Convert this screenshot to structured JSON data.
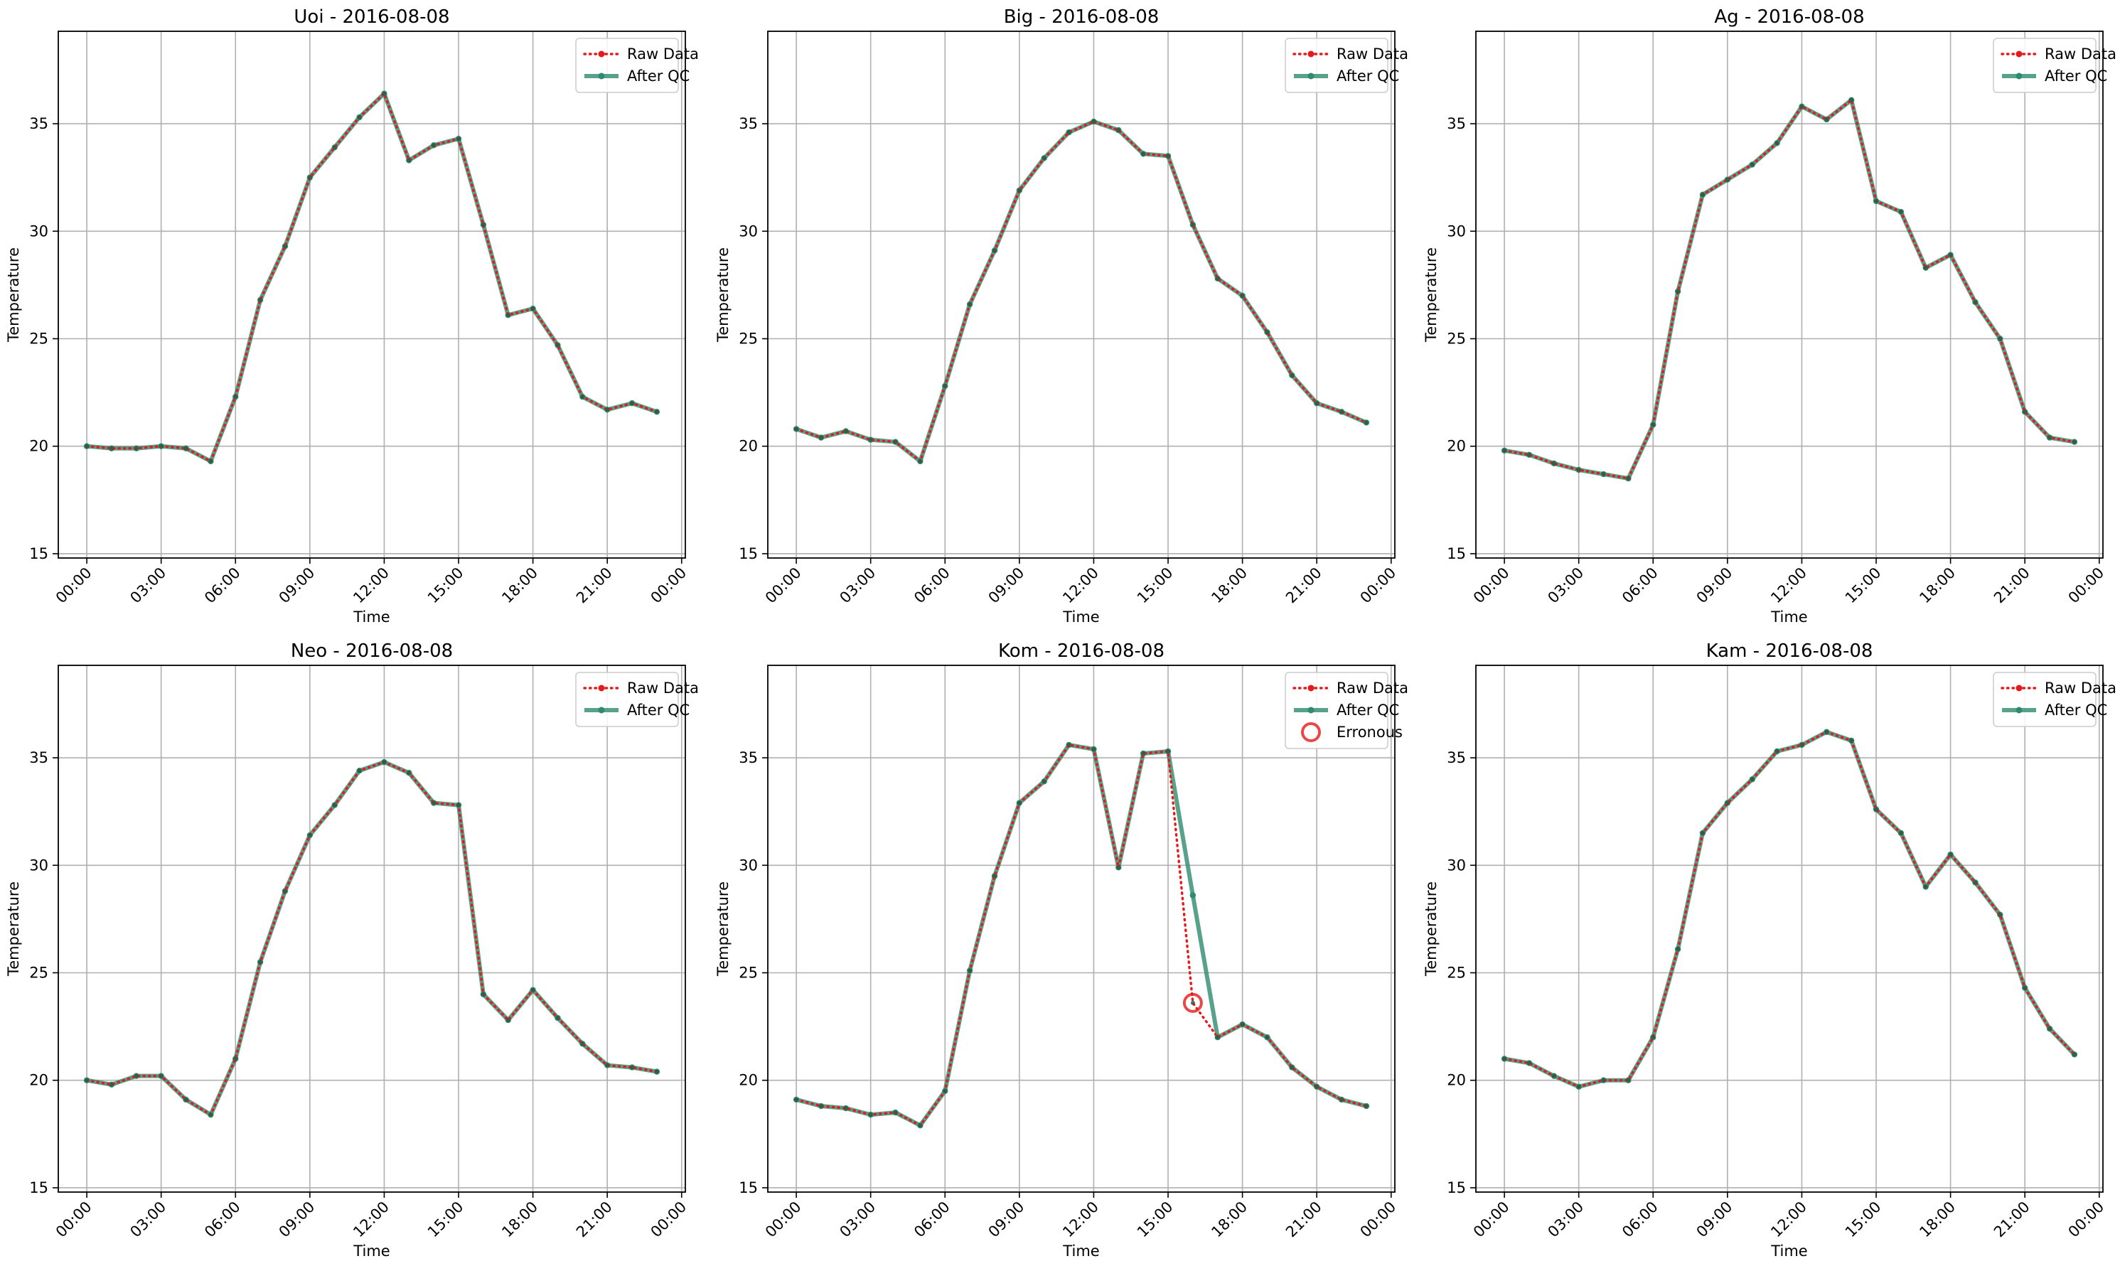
{
  "chart_data": [
    {
      "type": "line",
      "title": "Uoi - 2016-08-08",
      "xlabel": "Time",
      "ylabel": "Temperature",
      "xlim": [
        -1.15,
        24.15
      ],
      "ylim": [
        14.8,
        39.3
      ],
      "xticks": [
        "00:00",
        "03:00",
        "06:00",
        "09:00",
        "12:00",
        "15:00",
        "18:00",
        "21:00",
        "00:00"
      ],
      "yticks": [
        "15",
        "20",
        "25",
        "30",
        "35"
      ],
      "grid": true,
      "legend_position": "top-right",
      "hours": [
        0,
        1,
        2,
        3,
        4,
        5,
        6,
        7,
        8,
        9,
        10,
        11,
        12,
        13,
        14,
        15,
        16,
        17,
        18,
        19,
        20,
        21,
        22,
        23
      ],
      "series": [
        {
          "name": "Raw Data",
          "values": [
            20.0,
            19.9,
            19.9,
            20.0,
            19.9,
            19.3,
            22.3,
            26.8,
            29.3,
            32.5,
            33.9,
            35.3,
            36.4,
            33.3,
            34.0,
            34.3,
            30.3,
            26.1,
            26.4,
            24.7,
            22.3,
            21.7,
            22.0,
            21.6
          ]
        },
        {
          "name": "After QC",
          "values": [
            20.0,
            19.9,
            19.9,
            20.0,
            19.9,
            19.3,
            22.3,
            26.8,
            29.3,
            32.5,
            33.9,
            35.3,
            36.4,
            33.3,
            34.0,
            34.3,
            30.3,
            26.1,
            26.4,
            24.7,
            22.3,
            21.7,
            22.0,
            21.6
          ]
        }
      ],
      "erroneous": []
    },
    {
      "type": "line",
      "title": "Big - 2016-08-08",
      "xlabel": "Time",
      "ylabel": "Temperature",
      "xlim": [
        -1.15,
        24.15
      ],
      "ylim": [
        14.8,
        39.3
      ],
      "xticks": [
        "00:00",
        "03:00",
        "06:00",
        "09:00",
        "12:00",
        "15:00",
        "18:00",
        "21:00",
        "00:00"
      ],
      "yticks": [
        "15",
        "20",
        "25",
        "30",
        "35"
      ],
      "grid": true,
      "legend_position": "top-right",
      "hours": [
        0,
        1,
        2,
        3,
        4,
        5,
        6,
        7,
        8,
        9,
        10,
        11,
        12,
        13,
        14,
        15,
        16,
        17,
        18,
        19,
        20,
        21,
        22,
        23
      ],
      "series": [
        {
          "name": "Raw Data",
          "values": [
            20.8,
            20.4,
            20.7,
            20.3,
            20.2,
            19.3,
            22.8,
            26.6,
            29.1,
            31.9,
            33.4,
            34.6,
            35.1,
            34.7,
            33.6,
            33.5,
            30.3,
            27.8,
            27.0,
            25.3,
            23.3,
            22.0,
            21.6,
            21.1
          ]
        },
        {
          "name": "After QC",
          "values": [
            20.8,
            20.4,
            20.7,
            20.3,
            20.2,
            19.3,
            22.8,
            26.6,
            29.1,
            31.9,
            33.4,
            34.6,
            35.1,
            34.7,
            33.6,
            33.5,
            30.3,
            27.8,
            27.0,
            25.3,
            23.3,
            22.0,
            21.6,
            21.1
          ]
        }
      ],
      "erroneous": []
    },
    {
      "type": "line",
      "title": "Ag - 2016-08-08",
      "xlabel": "Time",
      "ylabel": "Temperature",
      "xlim": [
        -1.15,
        24.15
      ],
      "ylim": [
        14.8,
        39.3
      ],
      "xticks": [
        "00:00",
        "03:00",
        "06:00",
        "09:00",
        "12:00",
        "15:00",
        "18:00",
        "21:00",
        "00:00"
      ],
      "yticks": [
        "15",
        "20",
        "25",
        "30",
        "35"
      ],
      "grid": true,
      "legend_position": "top-right",
      "hours": [
        0,
        1,
        2,
        3,
        4,
        5,
        6,
        7,
        8,
        9,
        10,
        11,
        12,
        13,
        14,
        15,
        16,
        17,
        18,
        19,
        20,
        21,
        22,
        23
      ],
      "series": [
        {
          "name": "Raw Data",
          "values": [
            19.8,
            19.6,
            19.2,
            18.9,
            18.7,
            18.5,
            21.0,
            27.2,
            31.7,
            32.4,
            33.1,
            34.1,
            35.8,
            35.2,
            36.1,
            31.4,
            30.9,
            28.3,
            28.9,
            26.7,
            25.0,
            21.6,
            20.4,
            20.2
          ]
        },
        {
          "name": "After QC",
          "values": [
            19.8,
            19.6,
            19.2,
            18.9,
            18.7,
            18.5,
            21.0,
            27.2,
            31.7,
            32.4,
            33.1,
            34.1,
            35.8,
            35.2,
            36.1,
            31.4,
            30.9,
            28.3,
            28.9,
            26.7,
            25.0,
            21.6,
            20.4,
            20.2
          ]
        }
      ],
      "erroneous": []
    },
    {
      "type": "line",
      "title": "Neo - 2016-08-08",
      "xlabel": "Time",
      "ylabel": "Temperature",
      "xlim": [
        -1.15,
        24.15
      ],
      "ylim": [
        14.8,
        39.3
      ],
      "xticks": [
        "00:00",
        "03:00",
        "06:00",
        "09:00",
        "12:00",
        "15:00",
        "18:00",
        "21:00",
        "00:00"
      ],
      "yticks": [
        "15",
        "20",
        "25",
        "30",
        "35"
      ],
      "grid": true,
      "legend_position": "top-right",
      "hours": [
        0,
        1,
        2,
        3,
        4,
        5,
        6,
        7,
        8,
        9,
        10,
        11,
        12,
        13,
        14,
        15,
        16,
        17,
        18,
        19,
        20,
        21,
        22,
        23
      ],
      "series": [
        {
          "name": "Raw Data",
          "values": [
            20.0,
            19.8,
            20.2,
            20.2,
            19.1,
            18.4,
            21.0,
            25.5,
            28.8,
            31.4,
            32.8,
            34.4,
            34.8,
            34.3,
            32.9,
            32.8,
            24.0,
            22.8,
            24.2,
            22.9,
            21.7,
            20.7,
            20.6,
            20.4
          ]
        },
        {
          "name": "After QC",
          "values": [
            20.0,
            19.8,
            20.2,
            20.2,
            19.1,
            18.4,
            21.0,
            25.5,
            28.8,
            31.4,
            32.8,
            34.4,
            34.8,
            34.3,
            32.9,
            32.8,
            24.0,
            22.8,
            24.2,
            22.9,
            21.7,
            20.7,
            20.6,
            20.4
          ]
        }
      ],
      "erroneous": []
    },
    {
      "type": "line",
      "title": "Kom - 2016-08-08",
      "xlabel": "Time",
      "ylabel": "Temperature",
      "xlim": [
        -1.15,
        24.15
      ],
      "ylim": [
        14.8,
        39.3
      ],
      "xticks": [
        "00:00",
        "03:00",
        "06:00",
        "09:00",
        "12:00",
        "15:00",
        "18:00",
        "21:00",
        "00:00"
      ],
      "yticks": [
        "15",
        "20",
        "25",
        "30",
        "35"
      ],
      "grid": true,
      "legend_position": "top-right",
      "hours": [
        0,
        1,
        2,
        3,
        4,
        5,
        6,
        7,
        8,
        9,
        10,
        11,
        12,
        13,
        14,
        15,
        16,
        17,
        18,
        19,
        20,
        21,
        22,
        23
      ],
      "series": [
        {
          "name": "Raw Data",
          "values": [
            19.1,
            18.8,
            18.7,
            18.4,
            18.5,
            17.9,
            19.5,
            25.1,
            29.5,
            32.9,
            33.9,
            35.6,
            35.4,
            29.9,
            35.2,
            35.3,
            23.6,
            22.0,
            22.6,
            22.0,
            20.6,
            19.7,
            19.1,
            18.8
          ]
        },
        {
          "name": "After QC",
          "values": [
            19.1,
            18.8,
            18.7,
            18.4,
            18.5,
            17.9,
            19.5,
            25.1,
            29.5,
            32.9,
            33.9,
            35.6,
            35.4,
            29.9,
            35.2,
            35.3,
            28.6,
            22.0,
            22.6,
            22.0,
            20.6,
            19.7,
            19.1,
            18.8
          ]
        }
      ],
      "erroneous": [
        {
          "name": "Erronous",
          "hour": 16,
          "value": 23.6
        }
      ]
    },
    {
      "type": "line",
      "title": "Kam - 2016-08-08",
      "xlabel": "Time",
      "ylabel": "Temperature",
      "xlim": [
        -1.15,
        24.15
      ],
      "ylim": [
        14.8,
        39.3
      ],
      "xticks": [
        "00:00",
        "03:00",
        "06:00",
        "09:00",
        "12:00",
        "15:00",
        "18:00",
        "21:00",
        "00:00"
      ],
      "yticks": [
        "15",
        "20",
        "25",
        "30",
        "35"
      ],
      "grid": true,
      "legend_position": "top-right",
      "hours": [
        0,
        1,
        2,
        3,
        4,
        5,
        6,
        7,
        8,
        9,
        10,
        11,
        12,
        13,
        14,
        15,
        16,
        17,
        18,
        19,
        20,
        21,
        22,
        23
      ],
      "series": [
        {
          "name": "Raw Data",
          "values": [
            21.0,
            20.8,
            20.2,
            19.7,
            20.0,
            20.0,
            22.0,
            26.1,
            31.5,
            32.9,
            34.0,
            35.3,
            35.6,
            36.2,
            35.8,
            32.6,
            31.5,
            29.0,
            30.5,
            29.2,
            27.7,
            24.3,
            22.4,
            21.2
          ]
        },
        {
          "name": "After QC",
          "values": [
            21.0,
            20.8,
            20.2,
            19.7,
            20.0,
            20.0,
            22.0,
            26.1,
            31.5,
            32.9,
            34.0,
            35.3,
            35.6,
            36.2,
            35.8,
            32.6,
            31.5,
            29.0,
            30.5,
            29.2,
            27.7,
            24.3,
            22.4,
            21.2
          ]
        }
      ],
      "erroneous": []
    }
  ],
  "colors": {
    "raw": "#e41a1c",
    "qc": "#2e8b6f",
    "grid": "#b0b0b0",
    "axis": "#000000",
    "erroneous": "#e41a1c"
  }
}
